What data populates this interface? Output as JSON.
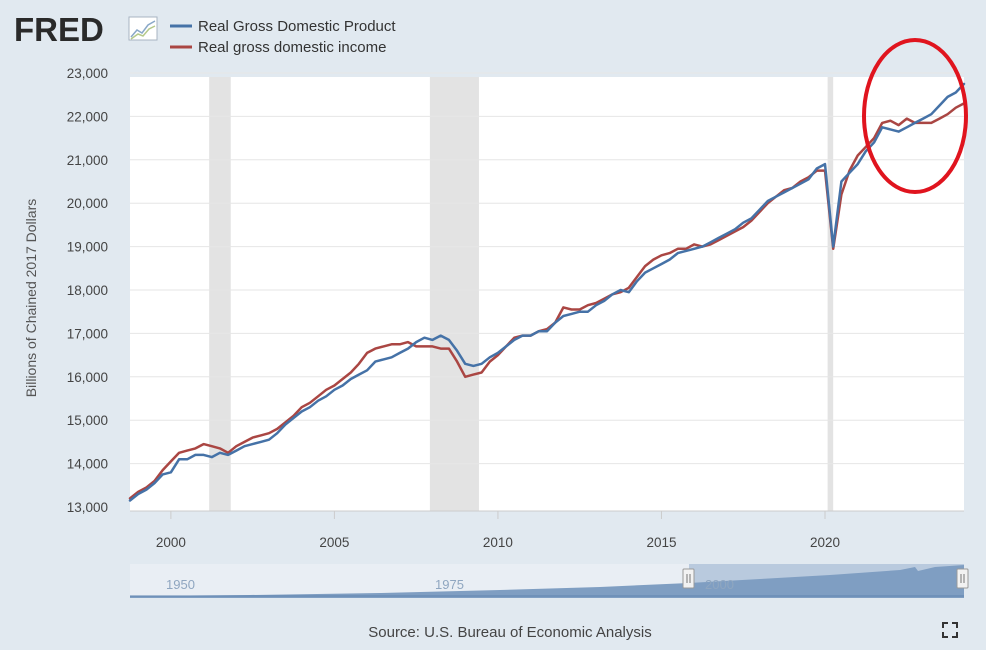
{
  "brand": {
    "name": "FRED",
    "logo_icon": "trend-line-icon",
    "accent": "#2a2a2a"
  },
  "legend": {
    "items": [
      {
        "label": "Real Gross Domestic Product",
        "color": "#4572a7"
      },
      {
        "label": "Real gross domestic income",
        "color": "#aa4643"
      }
    ]
  },
  "annotation": {
    "shape": "ellipse",
    "color": "#e0141e"
  },
  "navigator": {
    "labels": [
      "1950",
      "1975",
      "2000"
    ]
  },
  "footer": {
    "source": "Source: U.S. Bureau of Economic Analysis",
    "fullscreen_icon": "fullscreen-icon"
  },
  "chart_data": {
    "type": "line",
    "title": "",
    "xlabel": "",
    "ylabel": "Billions of Chained 2017 Dollars",
    "xlim": [
      1998.75,
      2024.25
    ],
    "ylim": [
      13000,
      23000
    ],
    "xticks": [
      2000,
      2005,
      2010,
      2015,
      2020
    ],
    "yticks": [
      13000,
      14000,
      15000,
      16000,
      17000,
      18000,
      19000,
      20000,
      21000,
      22000,
      23000
    ],
    "ytick_labels": [
      "13,000",
      "14,000",
      "15,000",
      "16,000",
      "17,000",
      "18,000",
      "19,000",
      "20,000",
      "21,000",
      "22,000",
      "23,000"
    ],
    "xtick_labels": [
      "2000",
      "2005",
      "2010",
      "2015",
      "2020"
    ],
    "grid": "horizontal",
    "legend_position": "top-left",
    "recessions": [
      [
        2001.17,
        2001.83
      ],
      [
        2007.92,
        2009.42
      ],
      [
        2020.08,
        2020.25
      ]
    ],
    "series": [
      {
        "name": "Real Gross Domestic Product",
        "color": "#4572a7",
        "points": [
          [
            1998.75,
            13150
          ],
          [
            1999.0,
            13300
          ],
          [
            1999.25,
            13400
          ],
          [
            1999.5,
            13550
          ],
          [
            1999.75,
            13750
          ],
          [
            2000.0,
            13800
          ],
          [
            2000.25,
            14100
          ],
          [
            2000.5,
            14100
          ],
          [
            2000.75,
            14200
          ],
          [
            2001.0,
            14200
          ],
          [
            2001.25,
            14150
          ],
          [
            2001.5,
            14250
          ],
          [
            2001.75,
            14200
          ],
          [
            2002.0,
            14300
          ],
          [
            2002.25,
            14400
          ],
          [
            2002.5,
            14450
          ],
          [
            2002.75,
            14500
          ],
          [
            2003.0,
            14550
          ],
          [
            2003.25,
            14700
          ],
          [
            2003.5,
            14900
          ],
          [
            2003.75,
            15050
          ],
          [
            2004.0,
            15200
          ],
          [
            2004.25,
            15300
          ],
          [
            2004.5,
            15450
          ],
          [
            2004.75,
            15550
          ],
          [
            2005.0,
            15700
          ],
          [
            2005.25,
            15800
          ],
          [
            2005.5,
            15950
          ],
          [
            2005.75,
            16050
          ],
          [
            2006.0,
            16150
          ],
          [
            2006.25,
            16350
          ],
          [
            2006.5,
            16400
          ],
          [
            2006.75,
            16450
          ],
          [
            2007.0,
            16550
          ],
          [
            2007.25,
            16650
          ],
          [
            2007.5,
            16800
          ],
          [
            2007.75,
            16900
          ],
          [
            2008.0,
            16850
          ],
          [
            2008.25,
            16950
          ],
          [
            2008.5,
            16850
          ],
          [
            2008.75,
            16600
          ],
          [
            2009.0,
            16300
          ],
          [
            2009.25,
            16250
          ],
          [
            2009.5,
            16300
          ],
          [
            2009.75,
            16450
          ],
          [
            2010.0,
            16550
          ],
          [
            2010.25,
            16700
          ],
          [
            2010.5,
            16850
          ],
          [
            2010.75,
            16950
          ],
          [
            2011.0,
            16950
          ],
          [
            2011.25,
            17050
          ],
          [
            2011.5,
            17050
          ],
          [
            2011.75,
            17250
          ],
          [
            2012.0,
            17400
          ],
          [
            2012.25,
            17450
          ],
          [
            2012.5,
            17500
          ],
          [
            2012.75,
            17500
          ],
          [
            2013.0,
            17650
          ],
          [
            2013.25,
            17750
          ],
          [
            2013.5,
            17900
          ],
          [
            2013.75,
            18000
          ],
          [
            2014.0,
            17950
          ],
          [
            2014.25,
            18200
          ],
          [
            2014.5,
            18400
          ],
          [
            2014.75,
            18500
          ],
          [
            2015.0,
            18600
          ],
          [
            2015.25,
            18700
          ],
          [
            2015.5,
            18850
          ],
          [
            2015.75,
            18900
          ],
          [
            2016.0,
            18950
          ],
          [
            2016.25,
            19000
          ],
          [
            2016.5,
            19100
          ],
          [
            2016.75,
            19200
          ],
          [
            2017.0,
            19300
          ],
          [
            2017.25,
            19400
          ],
          [
            2017.5,
            19550
          ],
          [
            2017.75,
            19650
          ],
          [
            2018.0,
            19850
          ],
          [
            2018.25,
            20050
          ],
          [
            2018.5,
            20150
          ],
          [
            2018.75,
            20250
          ],
          [
            2019.0,
            20350
          ],
          [
            2019.25,
            20450
          ],
          [
            2019.5,
            20550
          ],
          [
            2019.75,
            20800
          ],
          [
            2020.0,
            20900
          ],
          [
            2020.25,
            19000
          ],
          [
            2020.5,
            20500
          ],
          [
            2020.75,
            20700
          ],
          [
            2021.0,
            20900
          ],
          [
            2021.25,
            21200
          ],
          [
            2021.5,
            21400
          ],
          [
            2021.75,
            21750
          ],
          [
            2022.0,
            21700
          ],
          [
            2022.25,
            21650
          ],
          [
            2022.5,
            21750
          ],
          [
            2022.75,
            21850
          ],
          [
            2023.0,
            21950
          ],
          [
            2023.25,
            22050
          ],
          [
            2023.5,
            22250
          ],
          [
            2023.75,
            22450
          ],
          [
            2024.0,
            22550
          ],
          [
            2024.25,
            22750
          ]
        ]
      },
      {
        "name": "Real gross domestic income",
        "color": "#aa4643",
        "points": [
          [
            1998.75,
            13200
          ],
          [
            1999.0,
            13350
          ],
          [
            1999.25,
            13450
          ],
          [
            1999.5,
            13600
          ],
          [
            1999.75,
            13850
          ],
          [
            2000.0,
            14050
          ],
          [
            2000.25,
            14250
          ],
          [
            2000.5,
            14300
          ],
          [
            2000.75,
            14350
          ],
          [
            2001.0,
            14450
          ],
          [
            2001.25,
            14400
          ],
          [
            2001.5,
            14350
          ],
          [
            2001.75,
            14250
          ],
          [
            2002.0,
            14400
          ],
          [
            2002.25,
            14500
          ],
          [
            2002.5,
            14600
          ],
          [
            2002.75,
            14650
          ],
          [
            2003.0,
            14700
          ],
          [
            2003.25,
            14800
          ],
          [
            2003.5,
            14950
          ],
          [
            2003.75,
            15100
          ],
          [
            2004.0,
            15300
          ],
          [
            2004.25,
            15400
          ],
          [
            2004.5,
            15550
          ],
          [
            2004.75,
            15700
          ],
          [
            2005.0,
            15800
          ],
          [
            2005.25,
            15950
          ],
          [
            2005.5,
            16100
          ],
          [
            2005.75,
            16300
          ],
          [
            2006.0,
            16550
          ],
          [
            2006.25,
            16650
          ],
          [
            2006.5,
            16700
          ],
          [
            2006.75,
            16750
          ],
          [
            2007.0,
            16750
          ],
          [
            2007.25,
            16800
          ],
          [
            2007.5,
            16700
          ],
          [
            2007.75,
            16700
          ],
          [
            2008.0,
            16700
          ],
          [
            2008.25,
            16650
          ],
          [
            2008.5,
            16650
          ],
          [
            2008.75,
            16350
          ],
          [
            2009.0,
            16000
          ],
          [
            2009.25,
            16050
          ],
          [
            2009.5,
            16100
          ],
          [
            2009.75,
            16350
          ],
          [
            2010.0,
            16500
          ],
          [
            2010.25,
            16700
          ],
          [
            2010.5,
            16900
          ],
          [
            2010.75,
            16950
          ],
          [
            2011.0,
            16950
          ],
          [
            2011.25,
            17050
          ],
          [
            2011.5,
            17100
          ],
          [
            2011.75,
            17250
          ],
          [
            2012.0,
            17600
          ],
          [
            2012.25,
            17550
          ],
          [
            2012.5,
            17550
          ],
          [
            2012.75,
            17650
          ],
          [
            2013.0,
            17700
          ],
          [
            2013.25,
            17800
          ],
          [
            2013.5,
            17900
          ],
          [
            2013.75,
            17950
          ],
          [
            2014.0,
            18050
          ],
          [
            2014.25,
            18300
          ],
          [
            2014.5,
            18550
          ],
          [
            2014.75,
            18700
          ],
          [
            2015.0,
            18800
          ],
          [
            2015.25,
            18850
          ],
          [
            2015.5,
            18950
          ],
          [
            2015.75,
            18950
          ],
          [
            2016.0,
            19050
          ],
          [
            2016.25,
            19000
          ],
          [
            2016.5,
            19050
          ],
          [
            2016.75,
            19150
          ],
          [
            2017.0,
            19250
          ],
          [
            2017.25,
            19350
          ],
          [
            2017.5,
            19450
          ],
          [
            2017.75,
            19600
          ],
          [
            2018.0,
            19800
          ],
          [
            2018.25,
            20000
          ],
          [
            2018.5,
            20150
          ],
          [
            2018.75,
            20300
          ],
          [
            2019.0,
            20350
          ],
          [
            2019.25,
            20500
          ],
          [
            2019.5,
            20600
          ],
          [
            2019.75,
            20750
          ],
          [
            2020.0,
            20750
          ],
          [
            2020.25,
            18950
          ],
          [
            2020.5,
            20200
          ],
          [
            2020.75,
            20750
          ],
          [
            2021.0,
            21100
          ],
          [
            2021.25,
            21300
          ],
          [
            2021.5,
            21500
          ],
          [
            2021.75,
            21850
          ],
          [
            2022.0,
            21900
          ],
          [
            2022.25,
            21800
          ],
          [
            2022.5,
            21950
          ],
          [
            2022.75,
            21850
          ],
          [
            2023.0,
            21850
          ],
          [
            2023.25,
            21850
          ],
          [
            2023.5,
            21950
          ],
          [
            2023.75,
            22050
          ],
          [
            2024.0,
            22200
          ],
          [
            2024.25,
            22300
          ]
        ]
      }
    ]
  }
}
